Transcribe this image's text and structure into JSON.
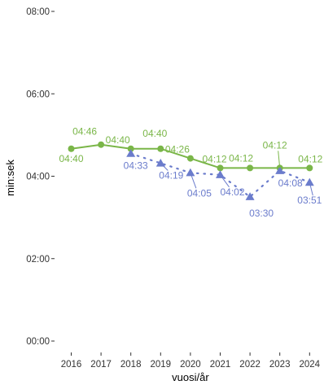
{
  "chart_data": {
    "type": "line",
    "xlabel": "vuosi/år",
    "ylabel": "min:sek",
    "ylim": [
      0,
      480
    ],
    "x_ticks": [
      "2016",
      "2017",
      "2018",
      "2019",
      "2020",
      "2021",
      "2022",
      "2023",
      "2024"
    ],
    "y_ticks": [
      {
        "value": 0,
        "label": "00:00"
      },
      {
        "value": 120,
        "label": "02:00"
      },
      {
        "value": 240,
        "label": "04:00"
      },
      {
        "value": 360,
        "label": "06:00"
      },
      {
        "value": 480,
        "label": "08:00"
      }
    ],
    "grid": false,
    "legend": "none",
    "series": [
      {
        "color": "#7ab648",
        "line_style": "solid",
        "marker": "circle",
        "points": [
          {
            "x": 2016,
            "y": 280,
            "label": "04:40"
          },
          {
            "x": 2017,
            "y": 286,
            "label": "04:46"
          },
          {
            "x": 2018,
            "y": 280,
            "label": "04:40"
          },
          {
            "x": 2019,
            "y": 280,
            "label": "04:40"
          },
          {
            "x": 2020,
            "y": 266,
            "label": "04:26"
          },
          {
            "x": 2021,
            "y": 252,
            "label": "04:12"
          },
          {
            "x": 2022,
            "y": 252,
            "label": "04:12"
          },
          {
            "x": 2023,
            "y": 252,
            "label": "04:12"
          },
          {
            "x": 2024,
            "y": 252,
            "label": "04:12"
          }
        ]
      },
      {
        "color": "#6b7ccc",
        "line_style": "dotted",
        "marker": "triangle",
        "points": [
          {
            "x": 2018,
            "y": 273,
            "label": "04:33"
          },
          {
            "x": 2019,
            "y": 259,
            "label": "04:19"
          },
          {
            "x": 2020,
            "y": 245,
            "label": "04:05"
          },
          {
            "x": 2021,
            "y": 242,
            "label": "04:02"
          },
          {
            "x": 2022,
            "y": 210,
            "label": "03:30"
          },
          {
            "x": 2023,
            "y": 248,
            "label": "04:08"
          },
          {
            "x": 2024,
            "y": 231,
            "label": "03:51"
          }
        ]
      }
    ]
  }
}
